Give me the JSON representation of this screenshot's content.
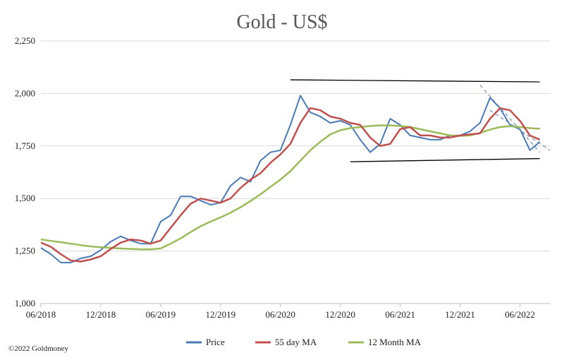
{
  "copyright": "©2022 Goldmoney",
  "chart_data": {
    "type": "line",
    "title": "Gold - US$",
    "xlabel": "",
    "ylabel": "",
    "ylim": [
      1000,
      2250
    ],
    "yticks": [
      1000,
      1250,
      1500,
      1750,
      2000,
      2250
    ],
    "ytick_labels": [
      "1,000",
      "1,250",
      "1,500",
      "1,750",
      "2,000",
      "2,250"
    ],
    "xlim": [
      "2018-06",
      "2022-09"
    ],
    "xticks": [
      "2018-06",
      "2018-12",
      "2019-06",
      "2019-12",
      "2020-06",
      "2020-12",
      "2021-06",
      "2021-12",
      "2022-06"
    ],
    "xtick_labels": [
      "06/2018",
      "12/2018",
      "06/2019",
      "12/2019",
      "06/2020",
      "12/2020",
      "06/2021",
      "12/2021",
      "06/2022"
    ],
    "grid": true,
    "legend_placement": "bottom",
    "x": [
      "2018-06",
      "2018-07",
      "2018-08",
      "2018-09",
      "2018-10",
      "2018-11",
      "2018-12",
      "2019-01",
      "2019-02",
      "2019-03",
      "2019-04",
      "2019-05",
      "2019-06",
      "2019-07",
      "2019-08",
      "2019-09",
      "2019-10",
      "2019-11",
      "2019-12",
      "2020-01",
      "2020-02",
      "2020-03",
      "2020-04",
      "2020-05",
      "2020-06",
      "2020-07",
      "2020-08",
      "2020-09",
      "2020-10",
      "2020-11",
      "2020-12",
      "2021-01",
      "2021-02",
      "2021-03",
      "2021-04",
      "2021-05",
      "2021-06",
      "2021-07",
      "2021-08",
      "2021-09",
      "2021-10",
      "2021-11",
      "2021-12",
      "2022-01",
      "2022-02",
      "2022-03",
      "2022-04",
      "2022-05",
      "2022-06",
      "2022-07",
      "2022-08"
    ],
    "series": [
      {
        "name": "Price",
        "color": "#4a7ab8",
        "values": [
          1265,
          1235,
          1195,
          1195,
          1215,
          1225,
          1255,
          1295,
          1320,
          1300,
          1285,
          1285,
          1390,
          1420,
          1510,
          1510,
          1490,
          1470,
          1480,
          1560,
          1600,
          1580,
          1680,
          1720,
          1730,
          1850,
          1990,
          1910,
          1890,
          1860,
          1870,
          1850,
          1780,
          1720,
          1760,
          1880,
          1850,
          1800,
          1790,
          1780,
          1780,
          1800,
          1800,
          1820,
          1860,
          1980,
          1930,
          1850,
          1830,
          1730,
          1770
        ]
      },
      {
        "name": "55 day MA",
        "color": "#c0504d",
        "values": [
          1290,
          1270,
          1235,
          1205,
          1200,
          1210,
          1225,
          1260,
          1290,
          1305,
          1300,
          1285,
          1300,
          1360,
          1420,
          1475,
          1500,
          1490,
          1480,
          1500,
          1550,
          1590,
          1620,
          1670,
          1710,
          1760,
          1860,
          1930,
          1920,
          1890,
          1880,
          1860,
          1850,
          1790,
          1750,
          1760,
          1830,
          1840,
          1800,
          1800,
          1790,
          1790,
          1800,
          1805,
          1810,
          1880,
          1930,
          1920,
          1870,
          1800,
          1780
        ]
      },
      {
        "name": "12 Month MA",
        "color": "#9bbb59",
        "values": [
          1305,
          1298,
          1292,
          1285,
          1278,
          1272,
          1268,
          1265,
          1262,
          1260,
          1258,
          1258,
          1262,
          1285,
          1310,
          1340,
          1368,
          1390,
          1410,
          1432,
          1458,
          1488,
          1520,
          1555,
          1590,
          1630,
          1680,
          1730,
          1770,
          1805,
          1825,
          1835,
          1840,
          1845,
          1848,
          1848,
          1845,
          1840,
          1830,
          1820,
          1810,
          1800,
          1798,
          1800,
          1812,
          1828,
          1840,
          1844,
          1840,
          1835,
          1832
        ]
      }
    ],
    "channel_lines": [
      {
        "color": "#000000",
        "dashed": false,
        "points": [
          [
            "2020-07",
            2065
          ],
          [
            "2022-08",
            2055
          ]
        ]
      },
      {
        "color": "#000000",
        "dashed": false,
        "points": [
          [
            "2021-01",
            1675
          ],
          [
            "2022-08",
            1690
          ]
        ]
      },
      {
        "color": "#6f8fb8",
        "dashed": true,
        "points": [
          [
            "2022-02",
            2040
          ],
          [
            "2022-08",
            1720
          ]
        ]
      },
      {
        "color": "#6f8fb8",
        "dashed": true,
        "points": [
          [
            "2022-03",
            1920
          ],
          [
            "2022-09",
            1730
          ]
        ]
      }
    ]
  }
}
